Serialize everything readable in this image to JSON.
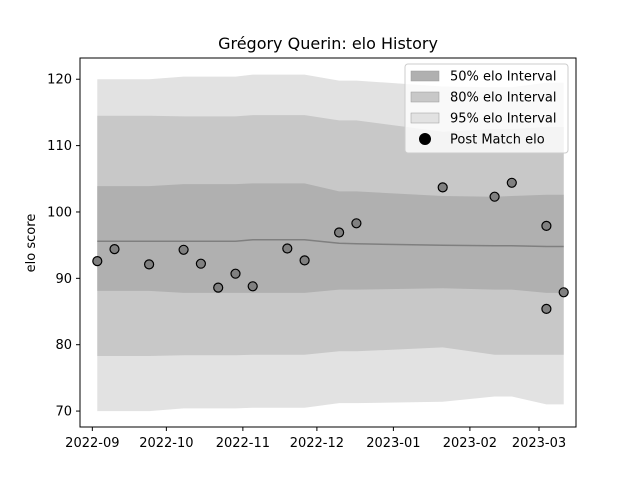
{
  "chart_data": {
    "type": "area",
    "title": "Grégory Querin: elo History",
    "xlabel": "",
    "ylabel": "elo score",
    "ylim": [
      67.6,
      123.2
    ],
    "xlim": [
      "2022-08-27",
      "2023-03-16"
    ],
    "yticks": [
      70,
      80,
      90,
      100,
      110,
      120
    ],
    "ytick_labels": [
      "70",
      "80",
      "90",
      "100",
      "110",
      "120"
    ],
    "xticks": [
      "2022-09-01",
      "2022-10-01",
      "2022-11-01",
      "2022-12-01",
      "2023-01-01",
      "2023-02-01",
      "2023-03-01"
    ],
    "xtick_labels": [
      "2022-09",
      "2022-10",
      "2022-11",
      "2022-12",
      "2023-01",
      "2023-02",
      "2023-03"
    ],
    "grid": false,
    "legend_position": "top-right",
    "colors": {
      "band50": "#b0b0b0",
      "band80": "#c8c8c8",
      "band95": "#e2e2e2",
      "line": "#7f7f7f",
      "point": "#808080"
    },
    "legend": [
      {
        "label": "50% elo Interval",
        "kind": "band50"
      },
      {
        "label": "80% elo Interval",
        "kind": "band80"
      },
      {
        "label": "95% elo Interval",
        "kind": "band95"
      },
      {
        "label": "Post Match elo",
        "kind": "point"
      }
    ],
    "band_x": [
      "2022-09-03",
      "2022-09-24",
      "2022-10-08",
      "2022-10-22",
      "2022-10-29",
      "2022-11-05",
      "2022-11-26",
      "2022-12-10",
      "2022-12-17",
      "2023-01-21",
      "2023-02-11",
      "2023-02-18",
      "2023-03-04",
      "2023-03-11"
    ],
    "mean": [
      95.6,
      95.6,
      95.6,
      95.6,
      95.6,
      95.8,
      95.8,
      95.3,
      95.2,
      95.0,
      94.9,
      94.9,
      94.8,
      94.8
    ],
    "band50": {
      "lower": [
        88.1,
        88.1,
        87.8,
        87.8,
        87.8,
        87.8,
        87.8,
        88.3,
        88.3,
        88.5,
        88.3,
        88.3,
        87.8,
        87.8
      ],
      "upper": [
        103.9,
        103.9,
        104.2,
        104.2,
        104.2,
        104.3,
        104.3,
        103.1,
        103.1,
        102.4,
        102.3,
        102.4,
        102.6,
        102.6
      ]
    },
    "band80": {
      "lower": [
        78.3,
        78.3,
        78.4,
        78.4,
        78.4,
        78.5,
        78.5,
        79.0,
        79.0,
        79.6,
        78.5,
        78.5,
        78.5,
        78.5
      ],
      "upper": [
        114.5,
        114.5,
        114.4,
        114.4,
        114.4,
        114.6,
        114.6,
        113.8,
        113.8,
        112.1,
        112.5,
        112.5,
        112.8,
        112.8
      ]
    },
    "band95": {
      "lower": [
        70.0,
        70.0,
        70.4,
        70.4,
        70.4,
        70.5,
        70.5,
        71.2,
        71.2,
        71.4,
        72.2,
        72.2,
        71.0,
        71.0
      ],
      "upper": [
        120.0,
        120.0,
        120.4,
        120.4,
        120.4,
        120.7,
        120.7,
        119.8,
        119.8,
        118.9,
        118.8,
        118.8,
        119.5,
        119.5
      ]
    },
    "points": [
      {
        "x": "2022-09-03",
        "y": 92.6
      },
      {
        "x": "2022-09-10",
        "y": 94.4
      },
      {
        "x": "2022-09-24",
        "y": 92.1
      },
      {
        "x": "2022-10-08",
        "y": 94.3
      },
      {
        "x": "2022-10-15",
        "y": 92.2
      },
      {
        "x": "2022-10-22",
        "y": 88.6
      },
      {
        "x": "2022-10-29",
        "y": 90.7
      },
      {
        "x": "2022-11-05",
        "y": 88.8
      },
      {
        "x": "2022-11-19",
        "y": 94.5
      },
      {
        "x": "2022-11-26",
        "y": 92.7
      },
      {
        "x": "2022-12-10",
        "y": 96.9
      },
      {
        "x": "2022-12-17",
        "y": 98.3
      },
      {
        "x": "2023-01-21",
        "y": 103.7
      },
      {
        "x": "2023-02-11",
        "y": 102.3
      },
      {
        "x": "2023-02-18",
        "y": 104.4
      },
      {
        "x": "2023-03-04",
        "y": 97.9
      },
      {
        "x": "2023-03-04",
        "y": 85.4
      },
      {
        "x": "2023-03-11",
        "y": 87.9
      }
    ]
  }
}
